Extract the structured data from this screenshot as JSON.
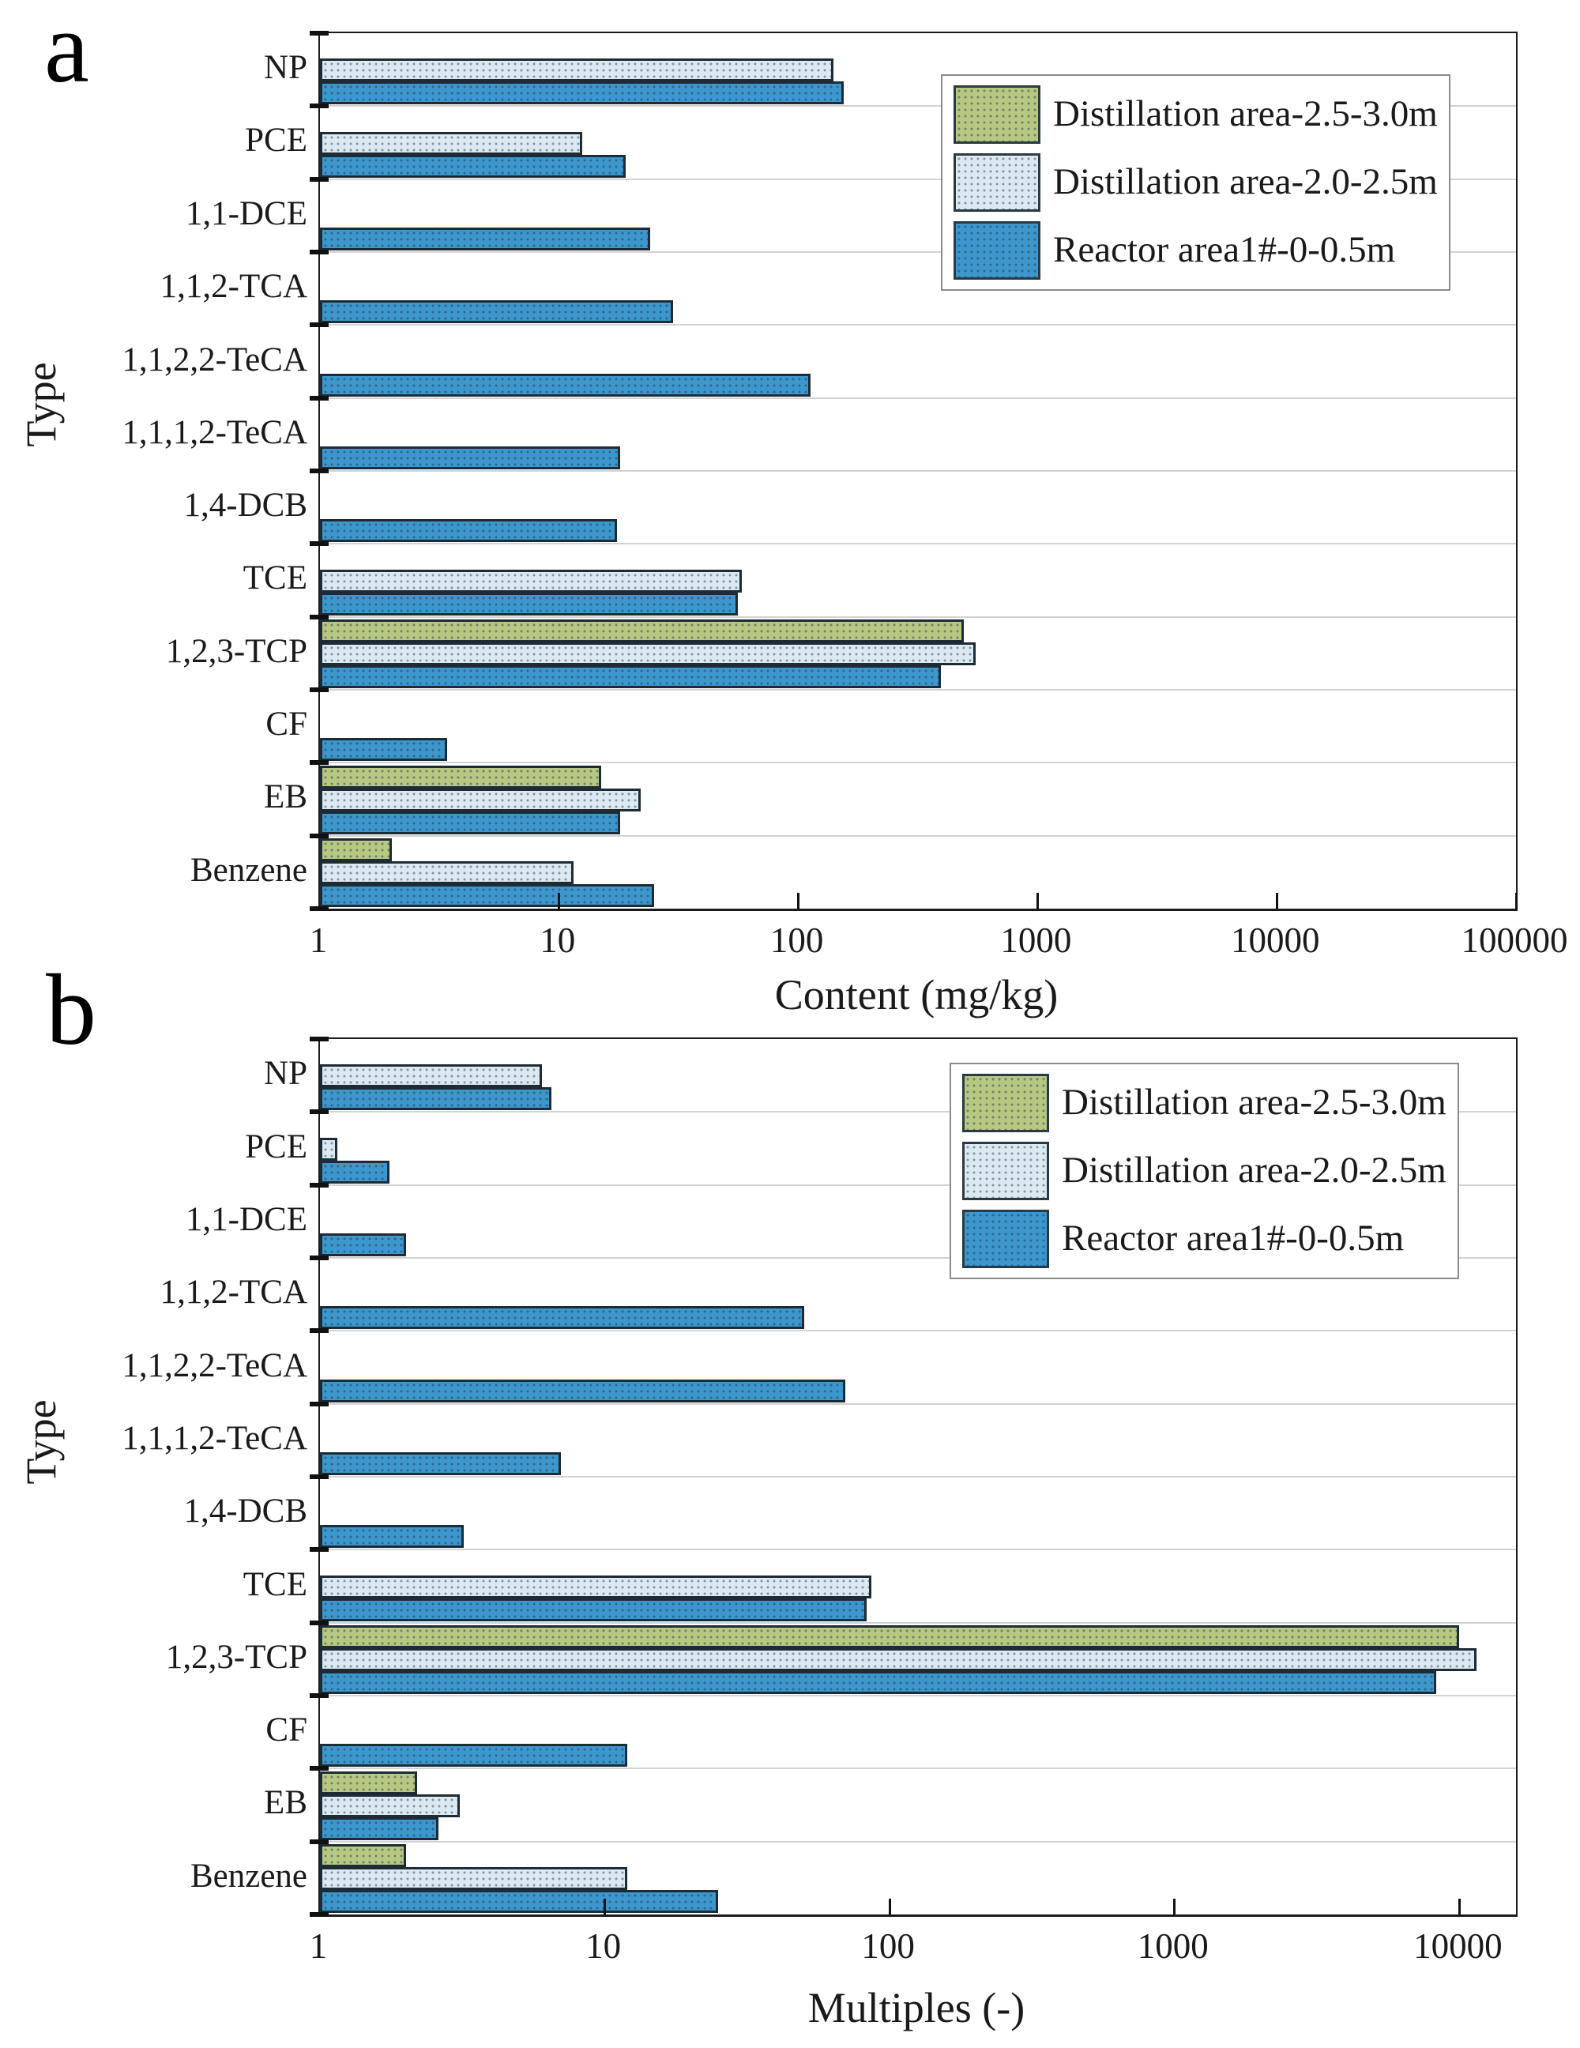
{
  "chart_data": [
    {
      "type": "bar",
      "orientation": "horizontal",
      "panel_letter": "a",
      "xlabel": "Content (mg/kg)",
      "ylabel": "Type",
      "xscale": "log",
      "xlim": [
        1,
        100000
      ],
      "xticks": [
        1,
        10,
        100,
        1000,
        10000,
        100000
      ],
      "grid": "horizontal category separators",
      "legend_position": "top-right",
      "bar_pattern": "dotted",
      "bar_border_color": "#1d2b35",
      "categories": [
        "NP",
        "PCE",
        "1,1-DCE",
        "1,1,2-TCA",
        "1,1,2,2-TeCA",
        "1,1,1,2-TeCA",
        "1,4-DCB",
        "TCE",
        "1,2,3-TCP",
        "CF",
        "EB",
        "Benzene"
      ],
      "series": [
        {
          "name": "Distillation area-2.5-3.0m",
          "color": "#b7c883",
          "values": [
            null,
            null,
            null,
            null,
            null,
            null,
            null,
            null,
            490,
            null,
            15,
            2.0
          ]
        },
        {
          "name": "Distillation area-2.0-2.5m",
          "color": "#dde9f1",
          "values": [
            140,
            12.5,
            null,
            null,
            null,
            null,
            null,
            58,
            550,
            null,
            22,
            11.5
          ]
        },
        {
          "name": "Reactor area1#-0-0.5m",
          "color": "#3d97cd",
          "values": [
            155,
            19,
            24,
            30,
            112,
            18,
            17.5,
            56,
            395,
            3.4,
            18,
            25
          ]
        }
      ]
    },
    {
      "type": "bar",
      "orientation": "horizontal",
      "panel_letter": "b",
      "xlabel": "Multiples (-)",
      "ylabel": "Type",
      "xscale": "log",
      "xlim": [
        1,
        15800
      ],
      "xticks": [
        1,
        10,
        100,
        1000,
        10000
      ],
      "grid": "horizontal category separators",
      "legend_position": "top-right",
      "bar_pattern": "dotted",
      "bar_border_color": "#1d2b35",
      "categories": [
        "NP",
        "PCE",
        "1,1-DCE",
        "1,1,2-TCA",
        "1,1,2,2-TeCA",
        "1,1,1,2-TeCA",
        "1,4-DCB",
        "TCE",
        "1,2,3-TCP",
        "CF",
        "EB",
        "Benzene"
      ],
      "series": [
        {
          "name": "Distillation area-2.5-3.0m",
          "color": "#b7c883",
          "values": [
            null,
            null,
            null,
            null,
            null,
            null,
            null,
            null,
            10000,
            null,
            2.2,
            2.0
          ]
        },
        {
          "name": "Distillation area-2.0-2.5m",
          "color": "#dde9f1",
          "values": [
            6,
            1.15,
            null,
            null,
            null,
            null,
            null,
            86,
            11500,
            null,
            3.1,
            12
          ]
        },
        {
          "name": "Reactor area1#-0-0.5m",
          "color": "#3d97cd",
          "values": [
            6.5,
            1.75,
            2.0,
            50,
            70,
            7,
            3.2,
            83,
            8300,
            12,
            2.6,
            25
          ]
        }
      ]
    }
  ]
}
